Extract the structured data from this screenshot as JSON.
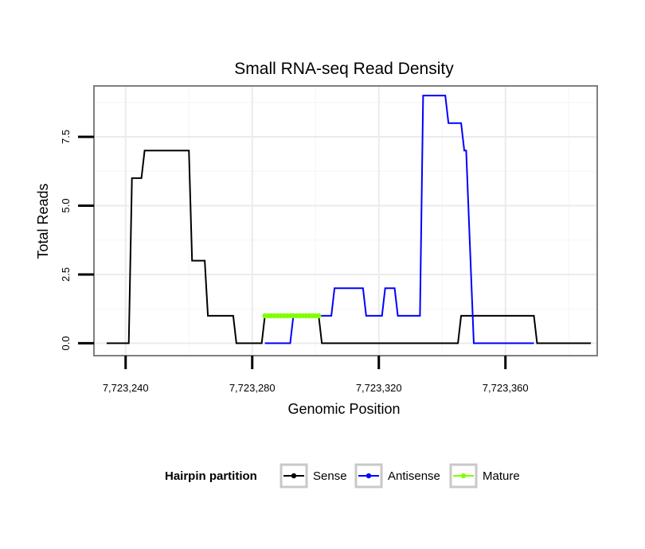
{
  "chart_data": {
    "type": "line",
    "title": "Small RNA-seq Read Density",
    "xlabel": "Genomic Position",
    "ylabel": "Total Reads",
    "xlim": [
      7723230,
      7723389
    ],
    "ylim": [
      -0.45,
      9.35
    ],
    "x_ticks": [
      {
        "value": 7723240,
        "label": "7,723,240"
      },
      {
        "value": 7723280,
        "label": "7,723,280"
      },
      {
        "value": 7723320,
        "label": "7,723,320"
      },
      {
        "value": 7723360,
        "label": "7,723,360"
      }
    ],
    "y_ticks": [
      {
        "value": 0,
        "label": "0.0"
      },
      {
        "value": 2.5,
        "label": "2.5"
      },
      {
        "value": 5,
        "label": "5.0"
      },
      {
        "value": 7.5,
        "label": "7.5"
      }
    ],
    "grid": true,
    "legend": {
      "title": "Hairpin partition",
      "position": "bottom",
      "entries": [
        "Sense",
        "Antisense",
        "Mature"
      ]
    },
    "series": [
      {
        "name": "Sense",
        "color": "#000000",
        "x": [
          7723234,
          7723241,
          7723242,
          7723245,
          7723246,
          7723260,
          7723261,
          7723265,
          7723266,
          7723274,
          7723275,
          7723283,
          7723284,
          7723301,
          7723302,
          7723345,
          7723346,
          7723369,
          7723370,
          7723387
        ],
        "y": [
          0,
          0,
          6,
          6,
          7,
          7,
          3,
          3,
          1,
          1,
          0,
          0,
          1,
          1,
          0,
          0,
          1,
          1,
          0,
          0
        ]
      },
      {
        "name": "Antisense",
        "color": "#0000ff",
        "x": [
          7723284,
          7723292,
          7723293,
          7723305,
          7723306,
          7723315,
          7723316,
          7723321,
          7723322,
          7723325,
          7723326,
          7723333,
          7723334,
          7723341,
          7723342,
          7723346,
          7723347,
          7723347.6,
          7723350,
          7723351,
          7723369
        ],
        "y": [
          0,
          0,
          1,
          1,
          2,
          2,
          1,
          1,
          2,
          2,
          1,
          1,
          9,
          9,
          8,
          8,
          7,
          7,
          0,
          0,
          0
        ]
      },
      {
        "name": "Mature",
        "color": "#7fff00",
        "x": [
          7723284,
          7723285,
          7723286,
          7723287,
          7723288,
          7723289,
          7723290,
          7723291,
          7723292,
          7723293,
          7723294,
          7723295,
          7723296,
          7723297,
          7723298,
          7723299,
          7723300,
          7723301
        ],
        "y": [
          1,
          1,
          1,
          1,
          1,
          1,
          1,
          1,
          1,
          1,
          1,
          1,
          1,
          1,
          1,
          1,
          1,
          1
        ]
      }
    ]
  }
}
